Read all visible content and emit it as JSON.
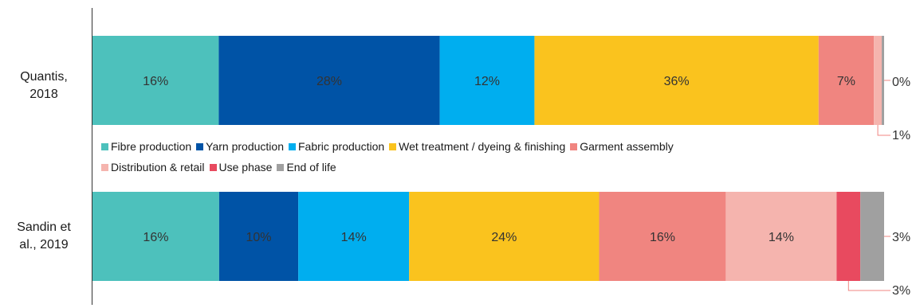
{
  "chart_data": {
    "type": "bar",
    "orientation": "horizontal",
    "stacked": true,
    "unit": "%",
    "categories": [
      "Quantis,\n2018",
      "Sandin et\nal., 2019"
    ],
    "series": [
      {
        "name": "Fibre production",
        "color": "#4DC1BC",
        "values": [
          16,
          16
        ],
        "labels": [
          "16%",
          "16%"
        ]
      },
      {
        "name": "Yarn production",
        "color": "#0053A6",
        "values": [
          28,
          10
        ],
        "labels": [
          "28%",
          "10%"
        ]
      },
      {
        "name": "Fabric production",
        "color": "#00AEEF",
        "values": [
          12,
          14
        ],
        "labels": [
          "12%",
          "14%"
        ]
      },
      {
        "name": "Wet treatment / dyeing & finishing",
        "color": "#FAC31E",
        "values": [
          36,
          24
        ],
        "labels": [
          "36%",
          "24%"
        ]
      },
      {
        "name": "Garment assembly",
        "color": "#F08580",
        "values": [
          7,
          16
        ],
        "labels": [
          "7%",
          "16%"
        ]
      },
      {
        "name": "Distribution & retail",
        "color": "#F5B4AE",
        "values": [
          1,
          14
        ],
        "labels": [
          "1%",
          "14%"
        ]
      },
      {
        "name": "Use phase",
        "color": "#E84A5F",
        "values": [
          0,
          3
        ],
        "labels": [
          "0%",
          "3%"
        ]
      },
      {
        "name": "End of life",
        "color": "#A0A0A0",
        "values": [
          0.3,
          3
        ],
        "labels": [
          "",
          "3%"
        ]
      }
    ],
    "callouts": [
      {
        "category_index": 0,
        "series_index": 6,
        "text": "0%"
      },
      {
        "category_index": 0,
        "series_index": 5,
        "text": "1%"
      },
      {
        "category_index": 1,
        "series_index": 7,
        "text": "3%"
      },
      {
        "category_index": 1,
        "series_index": 6,
        "text": "3%"
      }
    ],
    "legend_position": "between-bars",
    "grid": false,
    "xlim": [
      0,
      100
    ]
  }
}
